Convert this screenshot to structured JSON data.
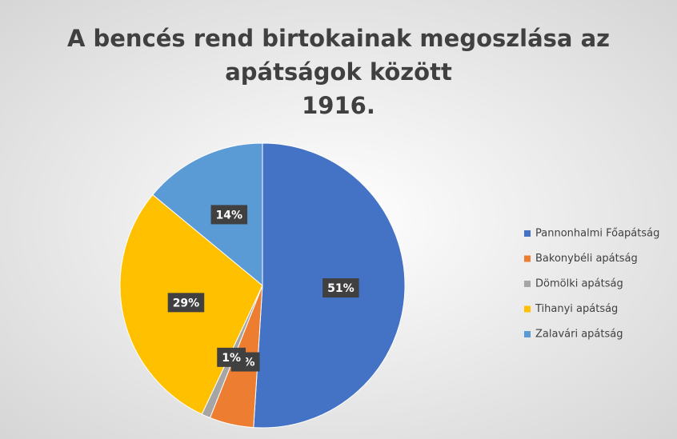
{
  "chart_data": {
    "type": "pie",
    "title": [
      "A bencés rend birtokainak megoszlása az",
      "apátságok között",
      "1916."
    ],
    "categories": [
      "Pannonhalmi Főapátság",
      "Bakonybéli apátság",
      "Dömölki apátság",
      "Tihanyi apátság",
      "Zalavári apátság"
    ],
    "values": [
      51,
      5,
      1,
      29,
      14
    ],
    "value_labels": [
      "51%",
      "5%",
      "1%",
      "29%",
      "14%"
    ],
    "colors": [
      "#4472c4",
      "#ed7d31",
      "#a5a5a5",
      "#ffc000",
      "#5b9bd5"
    ],
    "legend": "right"
  }
}
